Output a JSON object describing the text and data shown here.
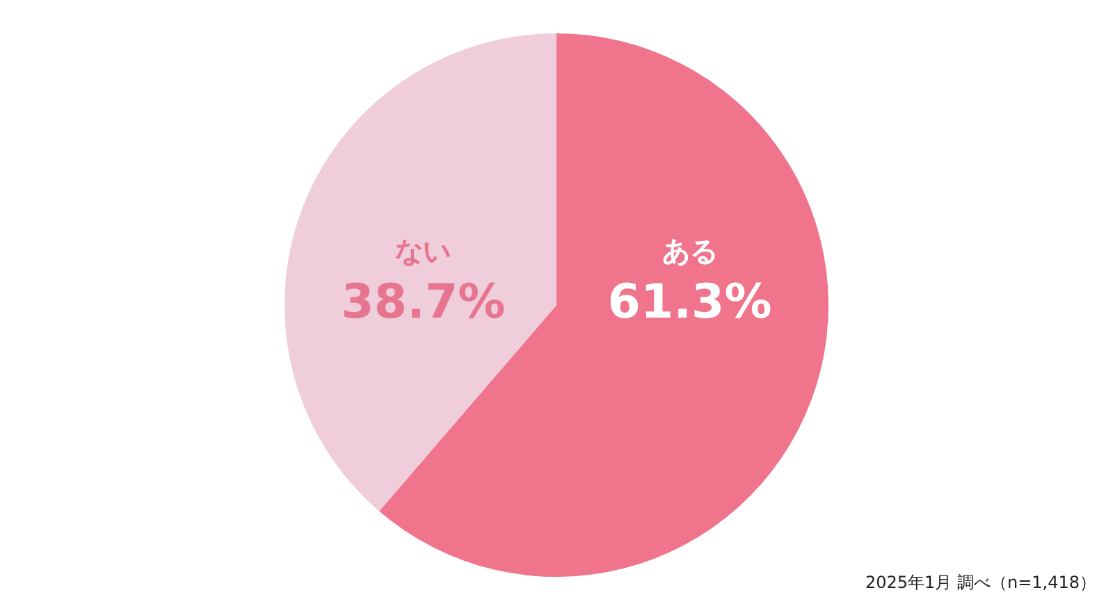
{
  "chart_data": {
    "type": "pie",
    "categories": [
      "ある",
      "ない"
    ],
    "values": [
      61.3,
      38.7
    ],
    "colors": [
      "#f0748b",
      "#f0cddb"
    ],
    "value_labels": [
      "61.3%",
      "38.7%"
    ],
    "annotations": [
      "2025年1月 調べ（n=1,418）"
    ],
    "legend": false
  }
}
